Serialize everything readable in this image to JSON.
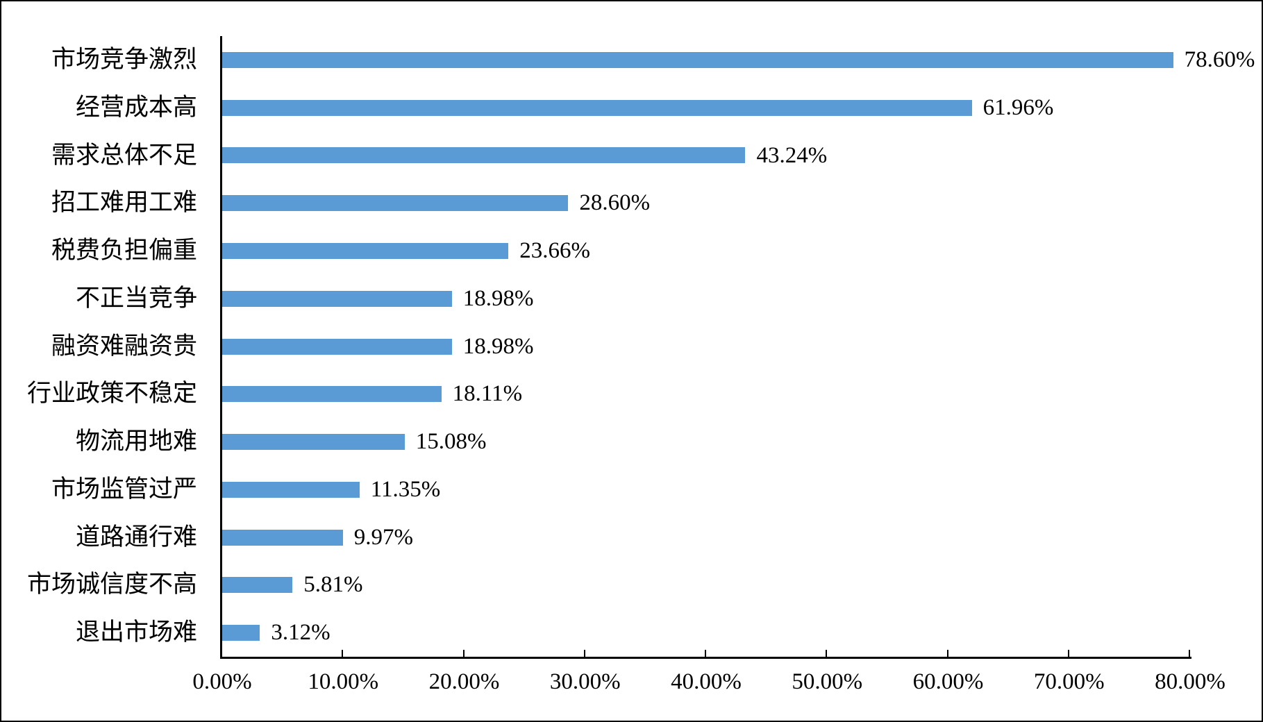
{
  "chart_data": {
    "type": "bar",
    "orientation": "horizontal",
    "title": "",
    "xlabel": "",
    "ylabel": "",
    "grid": false,
    "legend": false,
    "background_color": "#ffffff",
    "border_color": "#000000",
    "bar_color": "#5b9bd5",
    "axis_color": "#000000",
    "categories": [
      "市场竞争激烈",
      "经营成本高",
      "需求总体不足",
      "招工难用工难",
      "税费负担偏重",
      "不正当竞争",
      "融资难融资贵",
      "行业政策不稳定",
      "物流用地难",
      "市场监管过严",
      "道路通行难",
      "市场诚信度不高",
      "退出市场难"
    ],
    "values": [
      78.6,
      61.96,
      43.24,
      28.6,
      23.66,
      18.98,
      18.98,
      18.11,
      15.08,
      11.35,
      9.97,
      5.81,
      3.12
    ],
    "data_labels": [
      "78.60%",
      "61.96%",
      "43.24%",
      "28.60%",
      "23.66%",
      "18.98%",
      "18.98%",
      "18.11%",
      "15.08%",
      "11.35%",
      "9.97%",
      "5.81%",
      "3.12%"
    ],
    "x_axis": {
      "min": 0,
      "max": 80,
      "step": 10,
      "tick_labels": [
        "0.00%",
        "10.00%",
        "20.00%",
        "30.00%",
        "40.00%",
        "50.00%",
        "60.00%",
        "70.00%",
        "80.00%"
      ]
    }
  }
}
